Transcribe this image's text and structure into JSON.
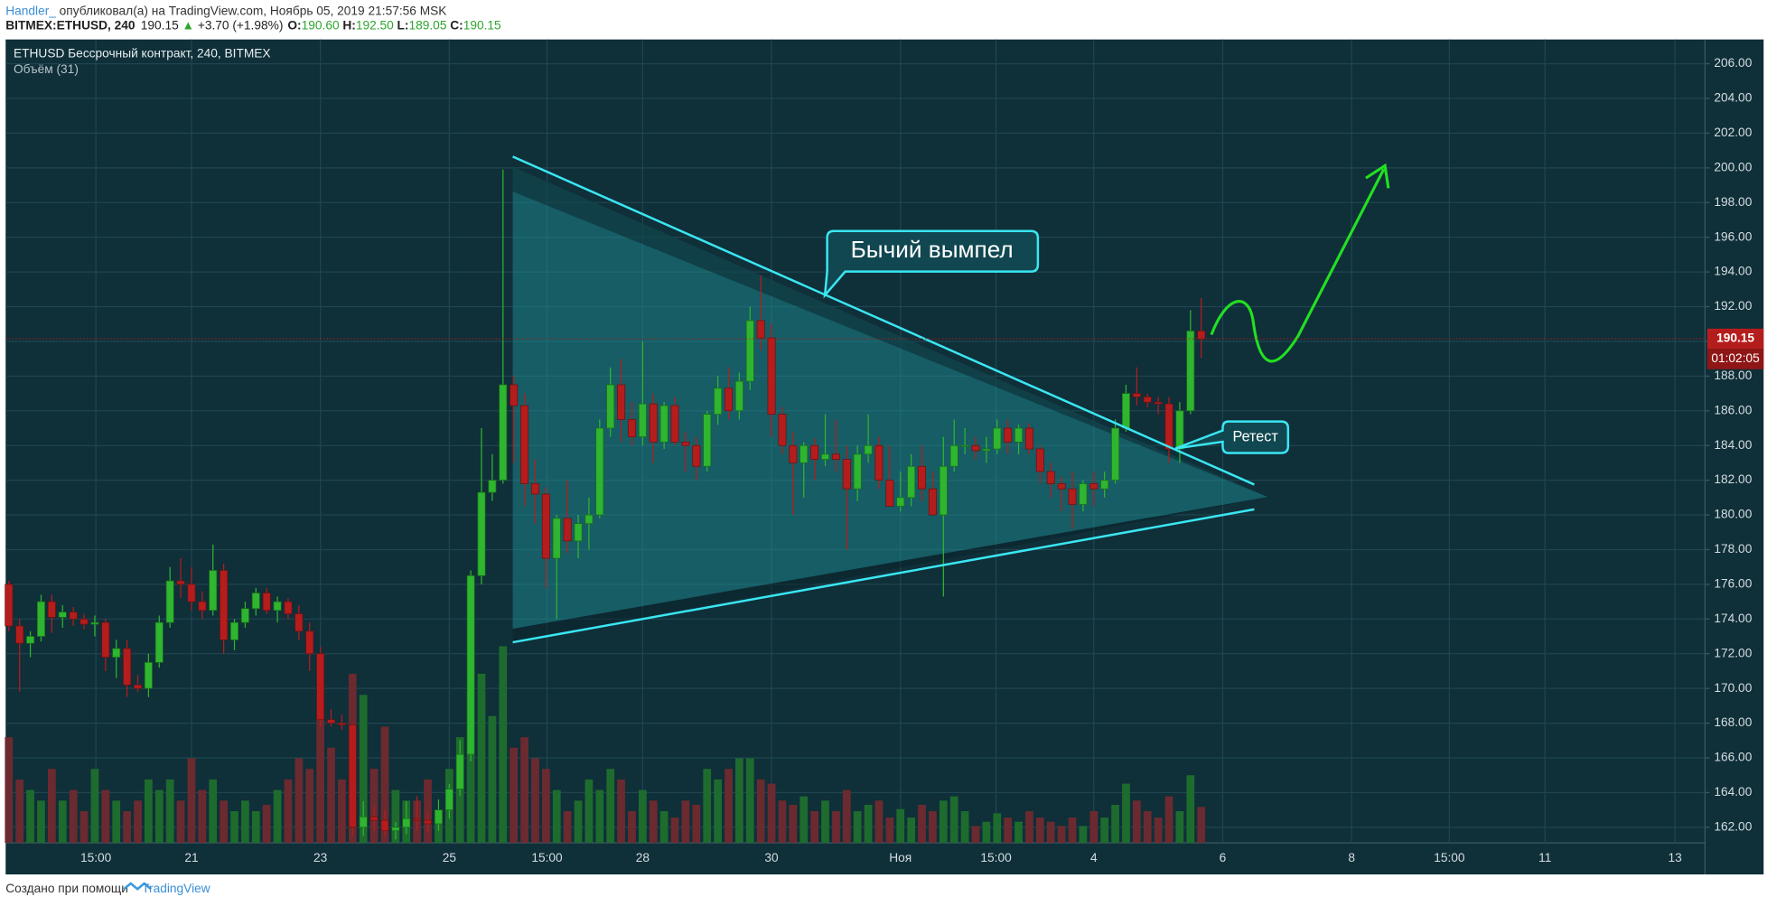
{
  "header": {
    "author": "Handler_",
    "published": "опубликовал(а) на TradingView.com, Ноябрь 05, 2019 21:57:56 MSK",
    "symbol": "BITMEX:ETHUSD, 240",
    "price": "190.15",
    "arrow": "▲",
    "change": "+3.70 (+1.98%)",
    "o_label": "O:",
    "o": "190.60",
    "h_label": "H:",
    "h": "192.50",
    "l_label": "L:",
    "l": "189.05",
    "c_label": "C:",
    "c": "190.15"
  },
  "chart_data": {
    "type": "candlestick",
    "title": "ETHUSD Бессрочный контракт, 240, BITMEX",
    "volume_label": "Объём (31)",
    "open": [
      176.0,
      173.6,
      172.6,
      173.0,
      175.0,
      174.1,
      174.4,
      174.0,
      173.7,
      173.8,
      171.8,
      172.3,
      170.2,
      170.0,
      171.5,
      173.8,
      176.2,
      176.0,
      175.0,
      174.5,
      176.8,
      172.8,
      173.8,
      174.6,
      175.5,
      174.5,
      175.0,
      174.3,
      173.3,
      172.0,
      168.2,
      168.0,
      167.9,
      162.0,
      162.6,
      162.4,
      161.8,
      162.0,
      162.5,
      162.4,
      162.2,
      163.0,
      164.2,
      166.2,
      176.5,
      181.3,
      182.0,
      187.5,
      186.3,
      181.8,
      181.2,
      177.5,
      179.8,
      178.5,
      179.5,
      180.0,
      185.0,
      187.5,
      185.5,
      184.5,
      186.4,
      184.2,
      186.3,
      184.2,
      184.0,
      182.8,
      185.8,
      187.3,
      186.0,
      187.7,
      191.2,
      190.2,
      185.8,
      184.0,
      183.0,
      184.0,
      183.2,
      183.5,
      183.2,
      181.5,
      183.5,
      184.0,
      182.0,
      180.5,
      181.0,
      182.8,
      181.5,
      180.0,
      182.8,
      184.0,
      184.0,
      183.7,
      183.8,
      185.0,
      184.2,
      185.0,
      183.8,
      182.5,
      181.8,
      181.5,
      180.6,
      181.8,
      181.5,
      182.0,
      185.0,
      187.0,
      186.8,
      186.5,
      186.4,
      183.8,
      186.0,
      190.6
    ],
    "high": [
      176.2,
      174.0,
      173.3,
      175.4,
      175.4,
      174.8,
      174.7,
      174.3,
      174.2,
      174.0,
      172.8,
      172.8,
      170.8,
      172.0,
      174.2,
      177.0,
      177.5,
      177.0,
      175.6,
      178.3,
      177.2,
      174.0,
      175.0,
      175.8,
      175.8,
      175.3,
      175.2,
      174.8,
      173.8,
      172.4,
      168.8,
      168.5,
      168.0,
      163.5,
      163.2,
      163.0,
      162.3,
      163.5,
      163.8,
      162.8,
      163.6,
      164.5,
      167.0,
      176.8,
      185.0,
      183.5,
      199.9,
      188.0,
      187.0,
      183.2,
      181.6,
      180.0,
      182.0,
      180.0,
      181.0,
      185.5,
      188.5,
      189.0,
      186.5,
      190.0,
      187.0,
      186.5,
      186.8,
      184.8,
      184.5,
      186.0,
      188.0,
      188.5,
      188.2,
      192.0,
      193.8,
      191.0,
      186.2,
      184.8,
      184.2,
      184.4,
      185.8,
      185.5,
      184.0,
      184.0,
      185.8,
      184.5,
      184.0,
      182.5,
      183.5,
      184.0,
      182.5,
      184.5,
      185.5,
      185.0,
      184.5,
      184.5,
      185.5,
      185.5,
      185.2,
      185.3,
      184.0,
      183.0,
      182.2,
      182.5,
      182.0,
      182.5,
      182.5,
      185.5,
      187.5,
      188.5,
      187.0,
      186.8,
      186.8,
      186.5,
      191.8,
      192.5
    ],
    "low": [
      173.3,
      169.8,
      171.8,
      172.7,
      173.2,
      173.5,
      173.6,
      173.4,
      173.0,
      171.0,
      170.6,
      169.5,
      169.8,
      169.5,
      171.2,
      173.5,
      175.2,
      174.5,
      174.0,
      174.2,
      172.0,
      172.2,
      173.5,
      174.2,
      174.3,
      173.8,
      174.0,
      172.8,
      171.0,
      167.8,
      167.8,
      167.6,
      161.5,
      161.5,
      161.8,
      161.5,
      161.3,
      161.6,
      161.8,
      161.7,
      161.8,
      162.5,
      163.8,
      165.8,
      176.0,
      180.8,
      181.8,
      183.0,
      180.5,
      179.5,
      175.8,
      174.0,
      177.8,
      177.5,
      178.0,
      179.8,
      184.5,
      184.2,
      184.0,
      184.0,
      183.0,
      183.8,
      184.0,
      182.5,
      182.0,
      182.5,
      185.2,
      185.5,
      185.5,
      187.2,
      189.5,
      184.5,
      183.5,
      180.0,
      181.0,
      182.0,
      182.8,
      182.5,
      178.0,
      180.8,
      183.0,
      181.5,
      180.5,
      180.2,
      180.5,
      180.8,
      180.0,
      175.3,
      182.5,
      183.5,
      183.2,
      183.0,
      183.5,
      183.5,
      183.5,
      183.5,
      181.8,
      181.0,
      180.2,
      179.2,
      180.2,
      180.5,
      181.0,
      181.8,
      184.8,
      186.3,
      186.2,
      185.8,
      183.0,
      183.0,
      185.8,
      189.05
    ],
    "close": [
      173.6,
      172.6,
      173.0,
      175.0,
      174.1,
      174.4,
      174.0,
      173.7,
      173.8,
      171.8,
      172.3,
      170.2,
      170.0,
      171.5,
      173.8,
      176.2,
      176.0,
      175.0,
      174.5,
      176.8,
      172.8,
      173.8,
      174.6,
      175.5,
      174.5,
      175.0,
      174.3,
      173.3,
      172.0,
      168.2,
      168.0,
      167.9,
      162.0,
      162.6,
      162.4,
      161.8,
      162.0,
      162.5,
      162.4,
      162.2,
      163.0,
      164.2,
      166.2,
      176.5,
      181.3,
      182.0,
      187.5,
      186.3,
      181.8,
      181.2,
      177.5,
      179.8,
      178.5,
      179.5,
      180.0,
      185.0,
      187.5,
      185.5,
      184.5,
      186.4,
      184.2,
      186.3,
      184.2,
      184.0,
      182.8,
      185.8,
      187.3,
      186.0,
      187.7,
      191.2,
      190.2,
      185.8,
      184.0,
      183.0,
      184.0,
      183.2,
      183.5,
      183.2,
      181.5,
      183.5,
      184.0,
      182.0,
      180.5,
      181.0,
      182.8,
      181.5,
      180.0,
      182.8,
      184.0,
      184.0,
      183.7,
      183.8,
      185.0,
      184.2,
      185.0,
      183.8,
      182.5,
      181.8,
      181.5,
      180.6,
      181.8,
      181.5,
      182.0,
      185.0,
      187.0,
      186.8,
      186.5,
      186.4,
      183.8,
      186.0,
      190.6,
      190.15
    ],
    "volume": [
      50,
      30,
      25,
      20,
      35,
      20,
      25,
      15,
      35,
      25,
      20,
      15,
      20,
      30,
      25,
      30,
      20,
      40,
      25,
      30,
      20,
      15,
      20,
      15,
      18,
      25,
      30,
      40,
      35,
      60,
      45,
      30,
      80,
      70,
      35,
      55,
      25,
      20,
      20,
      30,
      15,
      35,
      50,
      70,
      80,
      60,
      93,
      45,
      50,
      40,
      35,
      25,
      15,
      20,
      30,
      25,
      35,
      30,
      15,
      25,
      20,
      15,
      12,
      20,
      18,
      35,
      30,
      35,
      40,
      40,
      30,
      28,
      20,
      18,
      22,
      15,
      20,
      15,
      25,
      15,
      18,
      20,
      12,
      16,
      12,
      18,
      15,
      20,
      22,
      15,
      8,
      10,
      14,
      12,
      10,
      15,
      12,
      10,
      8,
      12,
      8,
      15,
      12,
      18,
      28,
      20,
      15,
      12,
      22,
      15,
      32,
      17
    ],
    "up_color": "#2fb52f",
    "down_color": "#b51d1d",
    "volume_up_color": "#1e6b2e",
    "volume_down_color": "#6b2a2f",
    "xlim": [
      -0.3,
      157.9
    ],
    "xticks": [
      {
        "value": 8.1,
        "label": "15:00"
      },
      {
        "value": 17,
        "label": "21"
      },
      {
        "value": 29,
        "label": "23"
      },
      {
        "value": 41,
        "label": "25"
      },
      {
        "value": 50.1,
        "label": "15:00"
      },
      {
        "value": 59,
        "label": "28"
      },
      {
        "value": 71,
        "label": "30"
      },
      {
        "value": 83,
        "label": "Ноя"
      },
      {
        "value": 91.9,
        "label": "15:00"
      },
      {
        "value": 101,
        "label": "4"
      },
      {
        "value": 113,
        "label": "6"
      },
      {
        "value": 125,
        "label": "8"
      },
      {
        "value": 134.1,
        "label": "15:00"
      },
      {
        "value": 143,
        "label": "11"
      },
      {
        "value": 155.1,
        "label": "13"
      }
    ],
    "ylim": [
      161.1,
      207.4
    ],
    "yticks": [
      {
        "value": 162,
        "label": "162.00"
      },
      {
        "value": 164,
        "label": "164.00"
      },
      {
        "value": 166,
        "label": "166.00"
      },
      {
        "value": 168,
        "label": "168.00"
      },
      {
        "value": 170,
        "label": "170.00"
      },
      {
        "value": 172,
        "label": "172.00"
      },
      {
        "value": 174,
        "label": "174.00"
      },
      {
        "value": 176,
        "label": "176.00"
      },
      {
        "value": 178,
        "label": "178.00"
      },
      {
        "value": 180,
        "label": "180.00"
      },
      {
        "value": 182,
        "label": "182.00"
      },
      {
        "value": 184,
        "label": "184.00"
      },
      {
        "value": 186,
        "label": "186.00"
      },
      {
        "value": 188,
        "label": "188.00"
      },
      {
        "value": 190,
        "label": "190.00"
      },
      {
        "value": 192,
        "label": "192.00"
      },
      {
        "value": 194,
        "label": "194.00"
      },
      {
        "value": 196,
        "label": "196.00"
      },
      {
        "value": 198,
        "label": "198.00"
      },
      {
        "value": 200,
        "label": "200.00"
      },
      {
        "value": 202,
        "label": "202.00"
      },
      {
        "value": 204,
        "label": "204.00"
      },
      {
        "value": 206,
        "label": "206.00"
      }
    ],
    "vlim": [
      0,
      380
    ],
    "grid": true,
    "last_price": 190.15,
    "countdown": "01:02:05",
    "annotations": [
      "Бычий вымпел",
      "Ретест"
    ]
  },
  "footer": {
    "text": "Создано при помощи",
    "brand": "TradingView"
  }
}
